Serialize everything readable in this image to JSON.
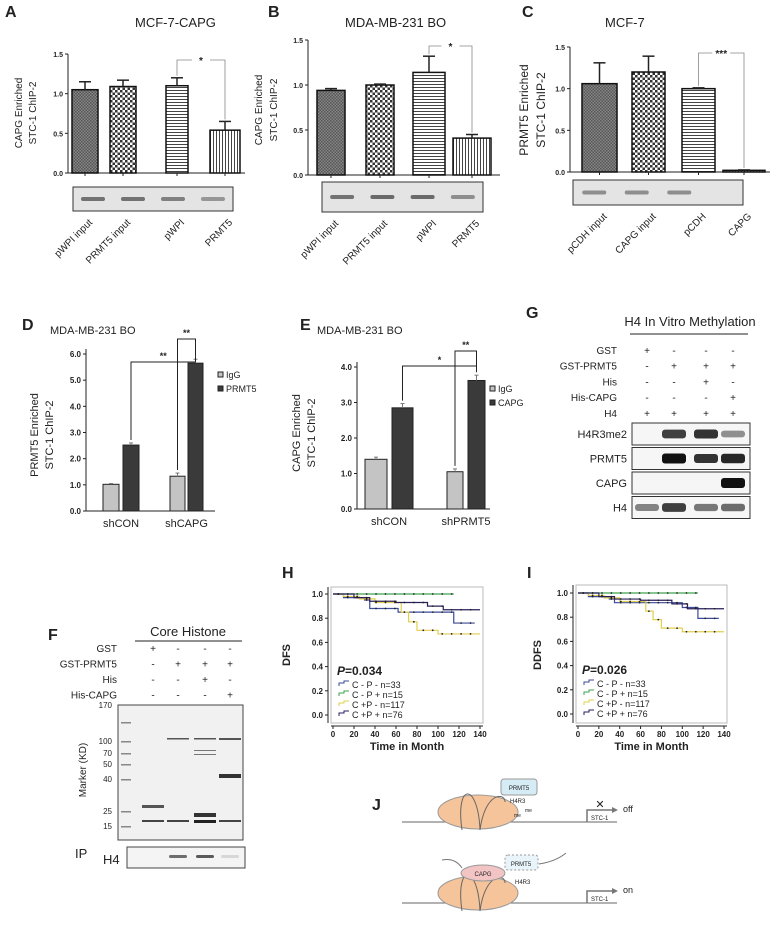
{
  "panel_letters": {
    "A": "A",
    "B": "B",
    "C": "C",
    "D": "D",
    "E": "E",
    "F": "F",
    "G": "G",
    "H": "H",
    "I": "I",
    "J": "J"
  },
  "chart_data": [
    {
      "id": "A",
      "type": "bar",
      "title": "MCF-7-CAPG",
      "ylabel": [
        "CAPG Enriched",
        "STC-1 ChIP-2"
      ],
      "ylim": [
        0,
        1.5
      ],
      "yticks": [
        "0.0",
        "0.5",
        "1.0",
        "1.5"
      ],
      "categories": [
        "pWPI input",
        "PRMT5 input",
        "pWPI",
        "PRMT5"
      ],
      "values": [
        1.05,
        1.09,
        1.1,
        0.54
      ],
      "errors": [
        0.1,
        0.08,
        0.1,
        0.11
      ],
      "significance": [
        {
          "from": 2,
          "to": 3,
          "label": "*"
        }
      ],
      "gel_band_intensity": [
        0.8,
        0.8,
        0.7,
        0.55
      ]
    },
    {
      "id": "B",
      "type": "bar",
      "title": "MDA-MB-231 BO",
      "ylabel": [
        "CAPG Enriched",
        "STC-1 ChIP-2"
      ],
      "ylim": [
        0,
        1.5
      ],
      "yticks": [
        "0.0",
        "0.5",
        "1.0",
        "1.5"
      ],
      "categories": [
        "pWPI input",
        "PRMT5 input",
        "pWPI",
        "PRMT5"
      ],
      "values": [
        0.94,
        1.0,
        1.14,
        0.41
      ],
      "errors": [
        0.02,
        0.01,
        0.18,
        0.04
      ],
      "significance": [
        {
          "from": 2,
          "to": 3,
          "label": "*"
        }
      ],
      "gel_band_intensity": [
        0.8,
        0.85,
        0.85,
        0.6
      ]
    },
    {
      "id": "C",
      "type": "bar",
      "title": "MCF-7",
      "ylabel": [
        "PRMT5 Enriched",
        "STC-1 ChIP-2"
      ],
      "ylim": [
        0,
        1.5
      ],
      "yticks": [
        "0.0",
        "0.5",
        "1.0",
        "1.5"
      ],
      "categories": [
        "pCDH input",
        "CAPG input",
        "pCDH",
        "CAPG"
      ],
      "values": [
        1.06,
        1.2,
        1.0,
        0.02
      ],
      "errors": [
        0.25,
        0.19,
        0.01,
        0.005
      ],
      "significance": [
        {
          "from": 2,
          "to": 3,
          "label": "***"
        }
      ],
      "gel_band_intensity": [
        0.6,
        0.6,
        0.6,
        0.0
      ]
    },
    {
      "id": "D",
      "type": "bar",
      "title": "MDA-MB-231 BO",
      "ylabel": [
        "PRMT5 Enriched",
        "STC-1 ChIP-2"
      ],
      "ylim": [
        0,
        6
      ],
      "yticks": [
        "0.0",
        "1.0",
        "2.0",
        "3.0",
        "4.0",
        "5.0",
        "6.0"
      ],
      "categories": [
        "shCON",
        "shCAPG"
      ],
      "series": [
        {
          "name": "IgG",
          "values": [
            1.02,
            1.33
          ],
          "errors": [
            0.03,
            0.12
          ]
        },
        {
          "name": "PRMT5",
          "values": [
            2.52,
            5.65
          ],
          "errors": [
            0.08,
            0.15
          ]
        }
      ],
      "significance": [
        {
          "label": "**",
          "from": "shCON PRMT5",
          "to": "shCAPG PRMT5"
        },
        {
          "label": "**",
          "from": "shCAPG IgG",
          "to": "shCAPG PRMT5"
        }
      ],
      "legend": "right"
    },
    {
      "id": "E",
      "type": "bar",
      "title": "MDA-MB-231 BO",
      "ylabel": [
        "CAPG Enriched",
        "STC-1 ChIP-2"
      ],
      "ylim": [
        0,
        4
      ],
      "yticks": [
        "0.0",
        "1.0",
        "2.0",
        "3.0",
        "4.0"
      ],
      "categories": [
        "shCON",
        "shPRMT5"
      ],
      "series": [
        {
          "name": "IgG",
          "values": [
            1.4,
            1.05
          ],
          "errors": [
            0.06,
            0.08
          ]
        },
        {
          "name": "CAPG",
          "values": [
            2.85,
            3.62
          ],
          "errors": [
            0.12,
            0.15
          ]
        }
      ],
      "significance": [
        {
          "label": "*",
          "from": "shCON CAPG",
          "to": "shPRMT5 CAPG"
        },
        {
          "label": "**",
          "from": "shPRMT5 IgG",
          "to": "shPRMT5 CAPG"
        }
      ],
      "legend": "right"
    },
    {
      "id": "H",
      "type": "line",
      "ylabel": "DFS",
      "xlabel": "Time in Month",
      "xlim": [
        0,
        140
      ],
      "ylim": [
        0,
        1.0
      ],
      "xticks": [
        "0",
        "20",
        "40",
        "60",
        "80",
        "100",
        "120",
        "140"
      ],
      "yticks": [
        "0.0",
        "0.2",
        "0.4",
        "0.6",
        "0.8",
        "1.0"
      ],
      "pvalue": "=0.034",
      "p": "P",
      "series": [
        {
          "name": "C - P -  n=33",
          "color": "#3b4a9a",
          "x": [
            0,
            10,
            30,
            35,
            62,
            115,
            135
          ],
          "y": [
            1.0,
            0.97,
            0.95,
            0.88,
            0.85,
            0.76,
            0.76
          ]
        },
        {
          "name": "C - P + n=15",
          "color": "#3fa34d",
          "x": [
            0,
            115
          ],
          "y": [
            1.0,
            1.0
          ]
        },
        {
          "name": "C +P -  n=117",
          "color": "#e2cf4f",
          "x": [
            0,
            10,
            25,
            40,
            65,
            72,
            80,
            100,
            140
          ],
          "y": [
            1.0,
            0.98,
            0.96,
            0.93,
            0.85,
            0.77,
            0.7,
            0.67,
            0.67
          ]
        },
        {
          "name": "C +P + n=76",
          "color": "#2a1f5c",
          "x": [
            0,
            20,
            35,
            60,
            90,
            105,
            140
          ],
          "y": [
            1.0,
            0.97,
            0.94,
            0.93,
            0.9,
            0.87,
            0.87
          ]
        }
      ]
    },
    {
      "id": "I",
      "type": "line",
      "ylabel": "DDFS",
      "xlabel": "Time in Month",
      "xlim": [
        0,
        140
      ],
      "ylim": [
        0,
        1.0
      ],
      "xticks": [
        "0",
        "20",
        "40",
        "60",
        "80",
        "100",
        "120",
        "140"
      ],
      "yticks": [
        "0.0",
        "0.2",
        "0.4",
        "0.6",
        "0.8",
        "1.0"
      ],
      "pvalue": "=0.026",
      "p": "P",
      "series": [
        {
          "name": "C - P -  n=33",
          "color": "#3b4a9a",
          "x": [
            0,
            10,
            30,
            35,
            100,
            115,
            135
          ],
          "y": [
            1.0,
            0.97,
            0.95,
            0.92,
            0.88,
            0.79,
            0.79
          ]
        },
        {
          "name": "C - P + n=15",
          "color": "#3fa34d",
          "x": [
            0,
            115
          ],
          "y": [
            1.0,
            1.0
          ]
        },
        {
          "name": "C +P -  n=117",
          "color": "#e2cf4f",
          "x": [
            0,
            10,
            25,
            40,
            65,
            72,
            80,
            100,
            140
          ],
          "y": [
            1.0,
            0.98,
            0.96,
            0.93,
            0.85,
            0.78,
            0.71,
            0.68,
            0.68
          ]
        },
        {
          "name": "C +P + n=76",
          "color": "#2a1f5c",
          "x": [
            0,
            20,
            35,
            60,
            90,
            105,
            140
          ],
          "y": [
            1.0,
            0.97,
            0.95,
            0.94,
            0.91,
            0.87,
            0.87
          ]
        }
      ]
    }
  ],
  "panel_F": {
    "title": "Core Histone",
    "rows": [
      {
        "label": "GST",
        "signs": [
          "+",
          "-",
          "-",
          "-"
        ]
      },
      {
        "label": "GST-PRMT5",
        "signs": [
          "-",
          "+",
          "+",
          "+"
        ]
      },
      {
        "label": "His",
        "signs": [
          "-",
          "-",
          "+",
          "-"
        ]
      },
      {
        "label": "His-CAPG",
        "signs": [
          "-",
          "-",
          "-",
          "+"
        ]
      }
    ],
    "marker_label": "Marker (KD)",
    "markers": [
      "170",
      "100",
      "70",
      "50",
      "40",
      "25",
      "15"
    ],
    "ip_label": "IP",
    "ip_blot": "H4"
  },
  "panel_G": {
    "title": "H4 In Vitro Methylation",
    "rows": [
      {
        "label": "GST",
        "signs": [
          "+",
          "-",
          "-",
          "-"
        ]
      },
      {
        "label": "GST-PRMT5",
        "signs": [
          "-",
          "+",
          "+",
          "+"
        ]
      },
      {
        "label": "His",
        "signs": [
          "-",
          "-",
          "+",
          "-"
        ]
      },
      {
        "label": "His-CAPG",
        "signs": [
          "-",
          "-",
          "-",
          "+"
        ]
      },
      {
        "label": "H4",
        "signs": [
          "+",
          "+",
          "+",
          "+"
        ]
      }
    ],
    "blots": [
      {
        "label": "H4R3me2",
        "band_intensity": [
          0,
          0.8,
          0.85,
          0.45
        ]
      },
      {
        "label": "PRMT5",
        "band_intensity": [
          0,
          1,
          0.85,
          0.9
        ]
      },
      {
        "label": "CAPG",
        "band_intensity": [
          0,
          0,
          0,
          1
        ]
      },
      {
        "label": "H4",
        "band_intensity": [
          0.5,
          0.8,
          0.55,
          0.6
        ]
      }
    ]
  },
  "panel_J": {
    "top": {
      "protein": "PRMT5",
      "site": "H4R3",
      "mark1": "me",
      "mark2": "me",
      "gene": "STC-1",
      "state": "off"
    },
    "bottom": {
      "protein": "PRMT5",
      "binder": "CAPG",
      "site": "H4R3",
      "gene": "STC-1",
      "state": "on"
    },
    "colors": {
      "off": "#d03030",
      "on": "#2a9a3a",
      "nucleosome": "#f6c49a"
    }
  }
}
